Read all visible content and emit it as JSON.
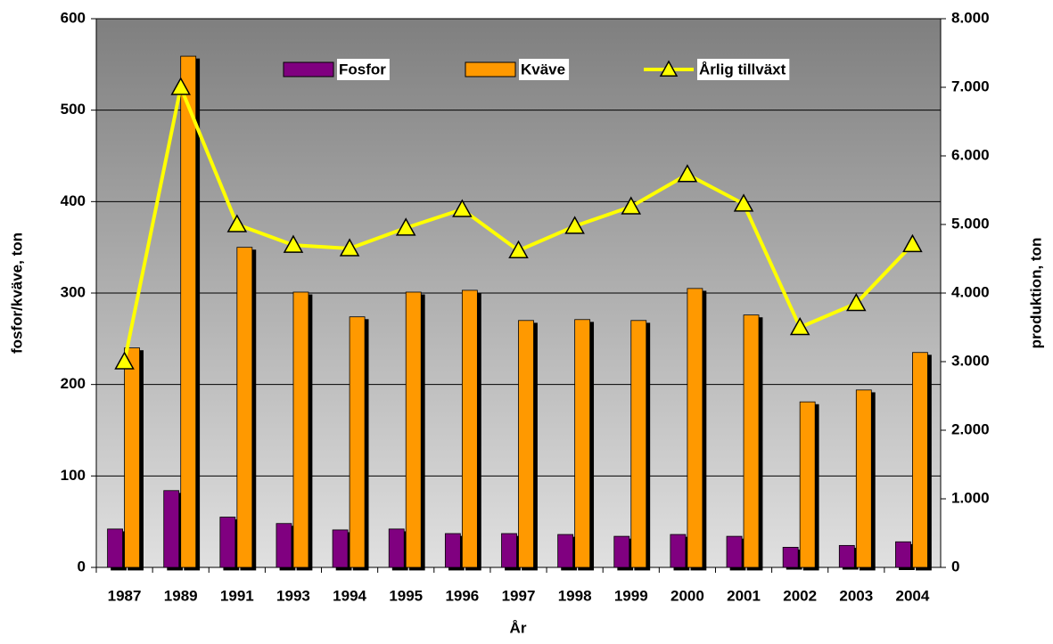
{
  "chart_data": {
    "type": "bar-line",
    "x_label": "År",
    "y_label": "fosfor/kväve, ton",
    "y2_label": "produktion, ton",
    "categories": [
      "1987",
      "1989",
      "1991",
      "1993",
      "1994",
      "1995",
      "1996",
      "1997",
      "1998",
      "1999",
      "2000",
      "2001",
      "2002",
      "2003",
      "2004"
    ],
    "series": [
      {
        "name": "Fosfor",
        "type": "bar",
        "color": "#800080",
        "values": [
          42,
          84,
          55,
          48,
          41,
          42,
          37,
          37,
          36,
          34,
          36,
          34,
          22,
          24,
          28
        ]
      },
      {
        "name": "Kväve",
        "type": "bar",
        "color": "#ff9900",
        "values": [
          240,
          559,
          350,
          301,
          274,
          301,
          303,
          270,
          271,
          270,
          305,
          276,
          181,
          194,
          235
        ]
      },
      {
        "name": "Årlig tillväxt",
        "type": "line",
        "axis": "y2",
        "color": "#ffff00",
        "values": [
          3000,
          7000,
          5000,
          4700,
          4650,
          4950,
          5220,
          4620,
          4975,
          5260,
          5730,
          5300,
          3500,
          3850,
          4710
        ]
      }
    ],
    "ylim": [
      0,
      600
    ],
    "yticks": [
      0,
      100,
      200,
      300,
      400,
      500,
      600
    ],
    "y2lim": [
      0,
      8000
    ],
    "y2ticks": [
      0,
      {
        "value": 1000,
        "label": "1.000"
      },
      {
        "value": 2000,
        "label": "2.000"
      },
      {
        "value": 3000,
        "label": "3.000"
      },
      {
        "value": 4000,
        "label": "4.000"
      },
      {
        "value": 5000,
        "label": "5.000"
      },
      {
        "value": 6000,
        "label": "6.000"
      },
      {
        "value": 7000,
        "label": "7.000"
      },
      {
        "value": 8000,
        "label": "8.000"
      }
    ],
    "grid": true
  }
}
